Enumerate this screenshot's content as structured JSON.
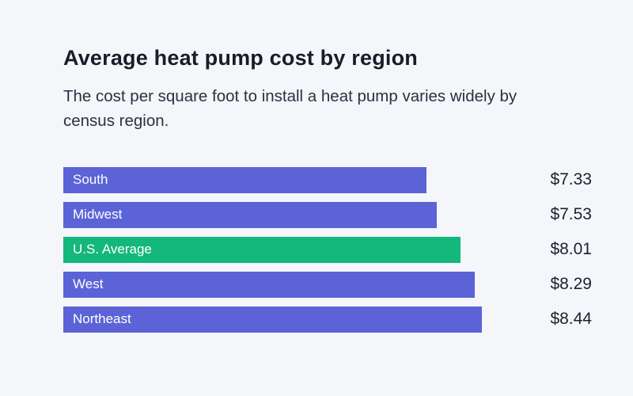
{
  "page": {
    "title": "Average heat pump cost by region",
    "subtitle": "The cost per square foot to install a heat pump varies widely by census region."
  },
  "chart_data": {
    "type": "bar",
    "orientation": "horizontal",
    "title": "Average heat pump cost by region",
    "subtitle": "The cost per square foot to install a heat pump varies widely by census region.",
    "categories": [
      "South",
      "Midwest",
      "U.S. Average",
      "West",
      "Northeast"
    ],
    "values": [
      7.33,
      7.53,
      8.01,
      8.29,
      8.44
    ],
    "value_labels": [
      "$7.33",
      "$7.53",
      "$8.01",
      "$8.29",
      "$8.44"
    ],
    "colors": [
      "#5b63d6",
      "#5b63d6",
      "#14b77c",
      "#5b63d6",
      "#5b63d6"
    ],
    "bar_color": "#5b63d6",
    "highlight_color": "#14b77c",
    "highlight_index": 2,
    "highlight_label": "U.S. Average",
    "xlabel": "",
    "ylabel": "",
    "xlim": [
      0,
      8.44
    ],
    "grid": false,
    "legend": "none",
    "background_color": "#f4f6f9",
    "units": "$ per square foot"
  }
}
